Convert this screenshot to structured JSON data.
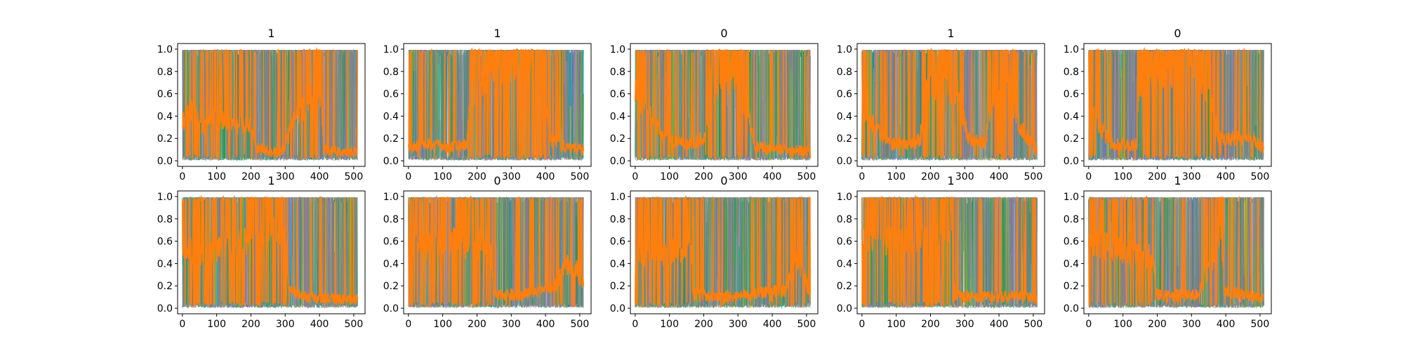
{
  "chart_data": [
    {
      "type": "line",
      "title": "1",
      "xlim": [
        -14,
        533
      ],
      "ylim": [
        -0.05,
        1.05
      ],
      "xticks": [
        0,
        100,
        200,
        300,
        400,
        500
      ],
      "yticks": [
        0.0,
        0.2,
        0.4,
        0.6,
        0.8,
        1.0
      ],
      "orange_profile": [
        [
          0,
          0.35
        ],
        [
          30,
          0.45
        ],
        [
          60,
          0.3
        ],
        [
          100,
          0.4
        ],
        [
          140,
          0.35
        ],
        [
          180,
          0.3
        ],
        [
          200,
          0.35
        ],
        [
          215,
          0.12
        ],
        [
          260,
          0.08
        ],
        [
          300,
          0.1
        ],
        [
          320,
          0.35
        ],
        [
          360,
          0.5
        ],
        [
          390,
          0.6
        ],
        [
          405,
          0.62
        ],
        [
          412,
          0.1
        ],
        [
          470,
          0.08
        ],
        [
          511,
          0.07
        ]
      ]
    },
    {
      "type": "line",
      "title": "1",
      "xlim": [
        -14,
        533
      ],
      "ylim": [
        -0.05,
        1.05
      ],
      "xticks": [
        0,
        100,
        200,
        300,
        400,
        500
      ],
      "yticks": [
        0.0,
        0.2,
        0.4,
        0.6,
        0.8,
        1.0
      ],
      "orange_profile": [
        [
          0,
          0.12
        ],
        [
          60,
          0.15
        ],
        [
          120,
          0.12
        ],
        [
          170,
          0.15
        ],
        [
          180,
          0.55
        ],
        [
          230,
          0.75
        ],
        [
          280,
          0.85
        ],
        [
          330,
          0.9
        ],
        [
          390,
          0.85
        ],
        [
          410,
          0.2
        ],
        [
          460,
          0.12
        ],
        [
          511,
          0.1
        ]
      ]
    },
    {
      "type": "line",
      "title": "0",
      "xlim": [
        -14,
        533
      ],
      "ylim": [
        -0.05,
        1.05
      ],
      "xticks": [
        0,
        100,
        200,
        300,
        400,
        500
      ],
      "yticks": [
        0.0,
        0.2,
        0.4,
        0.6,
        0.8,
        1.0
      ],
      "orange_profile": [
        [
          0,
          0.6
        ],
        [
          40,
          0.45
        ],
        [
          80,
          0.2
        ],
        [
          150,
          0.15
        ],
        [
          200,
          0.2
        ],
        [
          220,
          0.7
        ],
        [
          260,
          0.72
        ],
        [
          300,
          0.75
        ],
        [
          330,
          0.4
        ],
        [
          350,
          0.12
        ],
        [
          430,
          0.1
        ],
        [
          511,
          0.08
        ]
      ]
    },
    {
      "type": "line",
      "title": "1",
      "xlim": [
        -14,
        533
      ],
      "ylim": [
        -0.05,
        1.05
      ],
      "xticks": [
        0,
        100,
        200,
        300,
        400,
        500
      ],
      "yticks": [
        0.0,
        0.2,
        0.4,
        0.6,
        0.8,
        1.0
      ],
      "orange_profile": [
        [
          0,
          0.5
        ],
        [
          40,
          0.3
        ],
        [
          80,
          0.15
        ],
        [
          150,
          0.15
        ],
        [
          170,
          0.2
        ],
        [
          190,
          0.65
        ],
        [
          240,
          0.7
        ],
        [
          280,
          0.6
        ],
        [
          310,
          0.2
        ],
        [
          360,
          0.15
        ],
        [
          380,
          0.6
        ],
        [
          430,
          0.65
        ],
        [
          460,
          0.3
        ],
        [
          511,
          0.1
        ]
      ]
    },
    {
      "type": "line",
      "title": "0",
      "xlim": [
        -14,
        533
      ],
      "ylim": [
        -0.05,
        1.05
      ],
      "xticks": [
        0,
        100,
        200,
        300,
        400,
        500
      ],
      "yticks": [
        0.0,
        0.2,
        0.4,
        0.6,
        0.8,
        1.0
      ],
      "orange_profile": [
        [
          0,
          0.6
        ],
        [
          30,
          0.3
        ],
        [
          70,
          0.15
        ],
        [
          140,
          0.15
        ],
        [
          150,
          0.7
        ],
        [
          220,
          0.8
        ],
        [
          280,
          0.85
        ],
        [
          340,
          0.7
        ],
        [
          380,
          0.2
        ],
        [
          440,
          0.2
        ],
        [
          480,
          0.2
        ],
        [
          511,
          0.1
        ]
      ]
    },
    {
      "type": "line",
      "title": "1",
      "xlim": [
        -14,
        533
      ],
      "ylim": [
        -0.05,
        1.05
      ],
      "xticks": [
        0,
        100,
        200,
        300,
        400,
        500
      ],
      "yticks": [
        0.0,
        0.2,
        0.4,
        0.6,
        0.8,
        1.0
      ],
      "orange_profile": [
        [
          0,
          0.55
        ],
        [
          60,
          0.5
        ],
        [
          120,
          0.55
        ],
        [
          200,
          0.6
        ],
        [
          260,
          0.7
        ],
        [
          300,
          0.6
        ],
        [
          310,
          0.15
        ],
        [
          360,
          0.1
        ],
        [
          420,
          0.08
        ],
        [
          511,
          0.08
        ]
      ]
    },
    {
      "type": "line",
      "title": "0",
      "xlim": [
        -14,
        533
      ],
      "ylim": [
        -0.05,
        1.05
      ],
      "xticks": [
        0,
        100,
        200,
        300,
        400,
        500
      ],
      "yticks": [
        0.0,
        0.2,
        0.4,
        0.6,
        0.8,
        1.0
      ],
      "orange_profile": [
        [
          0,
          0.6
        ],
        [
          60,
          0.55
        ],
        [
          120,
          0.6
        ],
        [
          180,
          0.55
        ],
        [
          240,
          0.6
        ],
        [
          250,
          0.12
        ],
        [
          320,
          0.12
        ],
        [
          380,
          0.15
        ],
        [
          430,
          0.2
        ],
        [
          460,
          0.4
        ],
        [
          490,
          0.35
        ],
        [
          511,
          0.2
        ]
      ]
    },
    {
      "type": "line",
      "title": "0",
      "xlim": [
        -14,
        533
      ],
      "ylim": [
        -0.05,
        1.05
      ],
      "xticks": [
        0,
        100,
        200,
        300,
        400,
        500
      ],
      "yticks": [
        0.0,
        0.2,
        0.4,
        0.6,
        0.8,
        1.0
      ],
      "orange_profile": [
        [
          0,
          0.45
        ],
        [
          40,
          0.5
        ],
        [
          100,
          0.5
        ],
        [
          160,
          0.55
        ],
        [
          170,
          0.12
        ],
        [
          250,
          0.1
        ],
        [
          320,
          0.12
        ],
        [
          400,
          0.15
        ],
        [
          440,
          0.15
        ],
        [
          460,
          0.45
        ],
        [
          490,
          0.35
        ],
        [
          511,
          0.1
        ]
      ]
    },
    {
      "type": "line",
      "title": "1",
      "xlim": [
        -14,
        533
      ],
      "ylim": [
        -0.05,
        1.05
      ],
      "xticks": [
        0,
        100,
        200,
        300,
        400,
        500
      ],
      "yticks": [
        0.0,
        0.2,
        0.4,
        0.6,
        0.8,
        1.0
      ],
      "orange_profile": [
        [
          0,
          0.7
        ],
        [
          40,
          0.6
        ],
        [
          100,
          0.6
        ],
        [
          160,
          0.65
        ],
        [
          220,
          0.7
        ],
        [
          265,
          0.75
        ],
        [
          270,
          0.12
        ],
        [
          330,
          0.1
        ],
        [
          400,
          0.1
        ],
        [
          460,
          0.12
        ],
        [
          511,
          0.08
        ]
      ]
    },
    {
      "type": "line",
      "title": "1",
      "xlim": [
        -14,
        533
      ],
      "ylim": [
        -0.05,
        1.05
      ],
      "xticks": [
        0,
        100,
        200,
        300,
        400,
        500
      ],
      "yticks": [
        0.0,
        0.2,
        0.4,
        0.6,
        0.8,
        1.0
      ],
      "orange_profile": [
        [
          0,
          0.6
        ],
        [
          50,
          0.55
        ],
        [
          120,
          0.5
        ],
        [
          190,
          0.45
        ],
        [
          195,
          0.12
        ],
        [
          260,
          0.12
        ],
        [
          320,
          0.12
        ],
        [
          370,
          0.5
        ],
        [
          385,
          0.65
        ],
        [
          395,
          0.15
        ],
        [
          460,
          0.12
        ],
        [
          511,
          0.1
        ]
      ]
    }
  ],
  "colors": {
    "blue": "#1f77b4",
    "orange": "#ff7f0e",
    "cyan": "#17becf",
    "green": "#2ca02c",
    "olive": "#bcbd22",
    "pink": "#e377c2",
    "purple": "#9467bd",
    "gray": "#7f7f7f",
    "axes": "#000000",
    "background": "#ffffff"
  }
}
